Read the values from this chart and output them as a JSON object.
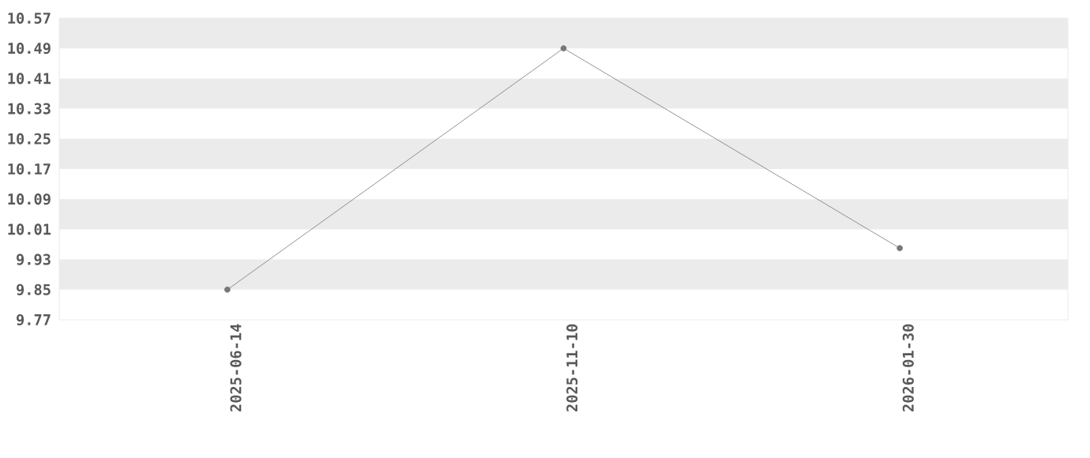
{
  "chart_data": {
    "type": "line",
    "categories": [
      "2025-06-14",
      "2025-11-10",
      "2026-01-30"
    ],
    "series": [
      {
        "color": "#777777",
        "values": [
          9.85,
          10.49,
          9.96
        ]
      }
    ],
    "ylim": [
      9.77,
      10.57
    ],
    "yticks": [
      9.77,
      9.85,
      9.93,
      10.01,
      10.09,
      10.17,
      10.25,
      10.33,
      10.41,
      10.49,
      10.57
    ],
    "bands": [
      {
        "axis": "y",
        "from": 10.49,
        "to": 10.57,
        "color": "#ebebeb"
      },
      {
        "axis": "y",
        "from": 10.33,
        "to": 10.41,
        "color": "#ebebeb"
      },
      {
        "axis": "y",
        "from": 10.17,
        "to": 10.25,
        "color": "#ebebeb"
      },
      {
        "axis": "y",
        "from": 10.01,
        "to": 10.09,
        "color": "#ebebeb"
      },
      {
        "axis": "y",
        "from": 9.85,
        "to": 9.93,
        "color": "#ebebeb"
      }
    ],
    "marker": "circle",
    "line_style": "solid"
  }
}
